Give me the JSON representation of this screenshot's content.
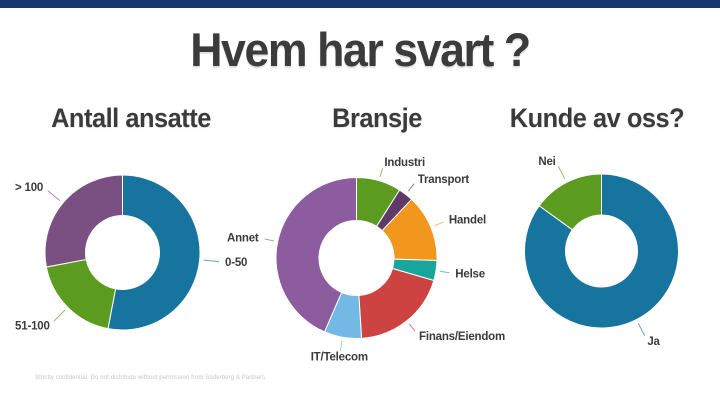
{
  "slide": {
    "title": "Hvem har svart ?",
    "footer": "Strictly confidential. Do not distribute without permission from Söderberg & Partners",
    "accent_bar_color": "#16386f",
    "text_color": "#3b3b3b"
  },
  "chart_data": [
    {
      "type": "pie",
      "subtype": "donut",
      "title": "Antall ansatte",
      "unit": "percent-estimated",
      "legend_position": "outside-labels",
      "segments": [
        {
          "label": "0-50",
          "value": 53,
          "color": "#17749e"
        },
        {
          "label": "51-100",
          "value": 19,
          "color": "#5b9c20"
        },
        {
          "label": "> 100",
          "value": 28,
          "color": "#7a4f82"
        }
      ]
    },
    {
      "type": "pie",
      "subtype": "donut",
      "title": "Bransje",
      "unit": "percent-estimated",
      "legend_position": "outside-labels",
      "segments": [
        {
          "label": "Industri",
          "value": 9,
          "color": "#5b9c20"
        },
        {
          "label": "Transport",
          "value": 3,
          "color": "#5e3a68"
        },
        {
          "label": "Handel",
          "value": 13.5,
          "color": "#f2971d"
        },
        {
          "label": "Helse",
          "value": 4,
          "color": "#18a59d"
        },
        {
          "label": "Finans/Eiendom",
          "value": 19.5,
          "color": "#cc4342"
        },
        {
          "label": "IT/Telecom",
          "value": 7.5,
          "color": "#72b9e6"
        },
        {
          "label": "Annet",
          "value": 43.5,
          "color": "#8d5c9e"
        }
      ]
    },
    {
      "type": "pie",
      "subtype": "donut",
      "title": "Kunde av oss?",
      "unit": "percent-estimated",
      "legend_position": "outside-labels",
      "segments": [
        {
          "label": "Ja",
          "value": 85,
          "color": "#17749e"
        },
        {
          "label": "Nei",
          "value": 15,
          "color": "#5b9c20"
        }
      ]
    }
  ]
}
